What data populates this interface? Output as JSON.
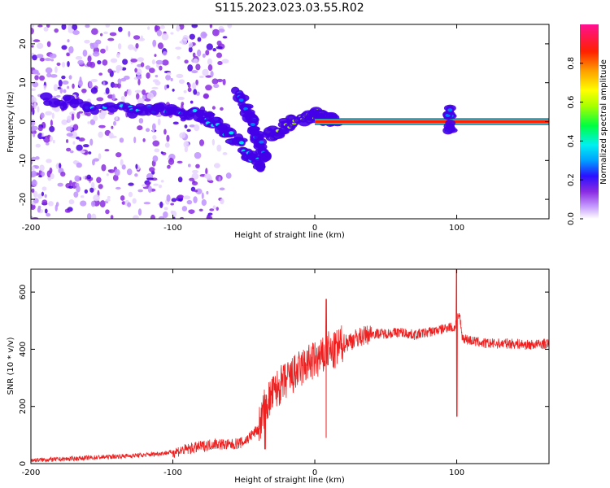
{
  "figure": {
    "title": "S115.2023.023.03.55.R02"
  },
  "chart_data": [
    {
      "type": "heatmap",
      "xlabel": "Height of straight line (km)",
      "ylabel": "Frequency (Hz)",
      "xlim": [
        -200,
        165
      ],
      "ylim": [
        -25,
        25
      ],
      "xticks": [
        -200,
        -100,
        0,
        100
      ],
      "yticks": [
        -20,
        -10,
        0,
        10,
        20
      ],
      "colorbar": {
        "label": "Normalized spectral amplitude",
        "range": [
          0,
          1
        ],
        "ticks": [
          0.0,
          0.2,
          0.4,
          0.6,
          0.8
        ],
        "colors": [
          "#ffffff",
          "#d8b8ff",
          "#8a2be2",
          "#3a00ff",
          "#0080ff",
          "#00e5ff",
          "#00ff40",
          "#b0ff00",
          "#ffff00",
          "#ff8000",
          "#ff0000",
          "#ff1493"
        ]
      },
      "features": [
        {
          "name": "scattered-noise",
          "x_range": [
            -200,
            -85
          ],
          "frequency_range": [
            -25,
            25
          ],
          "amplitude": 0.15
        },
        {
          "name": "descending-track",
          "points": [
            [
              -190,
              6
            ],
            [
              -160,
              4
            ],
            [
              -130,
              3
            ],
            [
              -110,
              3
            ],
            [
              -90,
              2
            ],
            [
              -75,
              1
            ],
            [
              -65,
              -2
            ],
            [
              -55,
              -5
            ],
            [
              -45,
              -9
            ],
            [
              -38,
              -11
            ]
          ],
          "amplitude": 0.35
        },
        {
          "name": "steep-branch",
          "points": [
            [
              -55,
              7
            ],
            [
              -48,
              3
            ],
            [
              -43,
              -1
            ],
            [
              -40,
              -5
            ],
            [
              -35,
              -10
            ]
          ],
          "amplitude": 0.3
        },
        {
          "name": "rising-track",
          "points": [
            [
              -33,
              -4
            ],
            [
              -25,
              -2
            ],
            [
              -15,
              0
            ],
            [
              -5,
              1
            ],
            [
              0,
              2
            ],
            [
              5,
              1
            ],
            [
              15,
              0
            ]
          ],
          "amplitude": 0.55
        },
        {
          "name": "main-carrier",
          "points": [
            [
              0,
              0
            ],
            [
              165,
              0
            ]
          ],
          "amplitude": 0.95
        },
        {
          "name": "spike",
          "points": [
            [
              95,
              -3
            ],
            [
              95,
              3
            ]
          ],
          "amplitude": 0.3
        }
      ]
    },
    {
      "type": "line",
      "xlabel": "Height of straight line (km)",
      "ylabel": "SNR (10 * v/v)",
      "xlim": [
        -200,
        165
      ],
      "ylim": [
        0,
        680
      ],
      "xticks": [
        -200,
        -100,
        0,
        100
      ],
      "yticks": [
        0,
        200,
        400,
        600
      ],
      "color": "#ee2020",
      "series": [
        {
          "x": [
            -200,
            -180,
            -160,
            -140,
            -120,
            -100,
            -90,
            -80,
            -70,
            -60,
            -50,
            -40,
            -35,
            -30,
            -25,
            -20,
            -15,
            -10,
            -5,
            0,
            5,
            8,
            10,
            12,
            15,
            20,
            25,
            30,
            40,
            50,
            60,
            70,
            80,
            90,
            95,
            98,
            100,
            102,
            104,
            110,
            120,
            130,
            140,
            150,
            165
          ],
          "y": [
            12,
            15,
            20,
            25,
            30,
            40,
            50,
            60,
            70,
            65,
            75,
            120,
            200,
            240,
            270,
            290,
            310,
            330,
            350,
            360,
            370,
            380,
            400,
            380,
            400,
            420,
            430,
            440,
            455,
            455,
            460,
            450,
            460,
            470,
            480,
            470,
            500,
            520,
            440,
            430,
            420,
            420,
            420,
            415,
            420
          ]
        }
      ],
      "spikes": [
        {
          "x": -35,
          "ymin": 50,
          "ymax": 240
        },
        {
          "x": 8,
          "ymin": 90,
          "ymax": 575
        },
        {
          "x": 100,
          "ymin": 165,
          "ymax": 680
        }
      ]
    }
  ]
}
